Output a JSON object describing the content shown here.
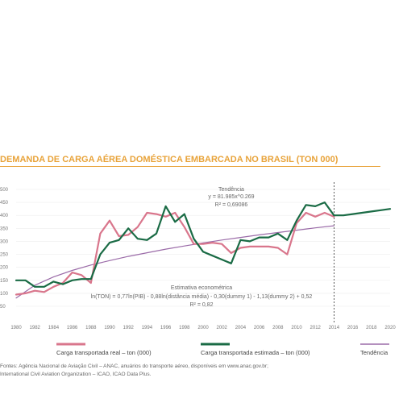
{
  "title": "DEMANDA DE CARGA AÉREA DOMÉSTICA EMBARCADA NO BRASIL (TON 000)",
  "annotations": {
    "trend_lines": [
      "Tendência",
      "y = 81.985x^0.269",
      "R² = 0,69086"
    ],
    "econ_lines": [
      "Estimativa econométrica",
      "ln(TON) = 0,77ln(PIB) - 0,88ln(distância média) - 0,30(dummy 1) - 1,13(dummy 2) + 0,52",
      "R² = 0,82"
    ]
  },
  "legend": {
    "real": "Carga transportada real – ton (000)",
    "estimated": "Carga transportada estimada – ton (000)",
    "trend": "Tendência"
  },
  "colors": {
    "real": "#d9768c",
    "estimated": "#1a6b45",
    "trend": "#9b6ba8",
    "title": "#e8a33a"
  },
  "source_lines": [
    "Fontes: Agência Nacional de Aviação Civil – ANAC, anuários do transporte aéreo, disponíveis em www.anac.gov.br;",
    "International Civil Aviation Organization – ICAO, ICAO Data Plus."
  ],
  "chart_data": {
    "type": "line",
    "title": "DEMANDA DE CARGA AÉREA DOMÉSTICA EMBARCADA NO BRASIL (TON 000)",
    "xlabel": "",
    "ylabel": "",
    "x_ticks": [
      1980,
      1982,
      1984,
      1986,
      1988,
      1990,
      1992,
      1994,
      1996,
      1998,
      2000,
      2002,
      2004,
      2006,
      2008,
      2010,
      2012,
      2014,
      2016,
      2018,
      2020
    ],
    "y_ticks": [
      50,
      100,
      150,
      200,
      250,
      300,
      350,
      400,
      450,
      500
    ],
    "y_tick_labels": [
      "50",
      "100",
      "150",
      "200",
      "250",
      "300",
      "350",
      "400",
      "450",
      "500"
    ],
    "xlim": [
      1980,
      2020
    ],
    "ylim": [
      50,
      500
    ],
    "forecast_divider_x": 2014,
    "series": [
      {
        "name": "Carga transportada real – ton (000)",
        "x": [
          1980,
          1981,
          1982,
          1983,
          1984,
          1985,
          1986,
          1987,
          1988,
          1989,
          1990,
          1991,
          1992,
          1993,
          1994,
          1995,
          1996,
          1997,
          1998,
          1999,
          2000,
          2001,
          2002,
          2003,
          2004,
          2005,
          2006,
          2007,
          2008,
          2009,
          2010,
          2011,
          2012,
          2013,
          2014
        ],
        "y": [
          95,
          100,
          110,
          105,
          125,
          140,
          180,
          170,
          140,
          330,
          380,
          320,
          325,
          355,
          410,
          405,
          395,
          410,
          355,
          290,
          290,
          295,
          290,
          255,
          275,
          280,
          280,
          280,
          275,
          250,
          370,
          410,
          395,
          410,
          395
        ]
      },
      {
        "name": "Carga transportada estimada – ton (000)",
        "x": [
          1980,
          1981,
          1982,
          1983,
          1984,
          1985,
          1986,
          1987,
          1988,
          1989,
          1990,
          1991,
          1992,
          1993,
          1994,
          1995,
          1996,
          1997,
          1998,
          1999,
          2000,
          2001,
          2002,
          2003,
          2004,
          2005,
          2006,
          2007,
          2008,
          2009,
          2010,
          2011,
          2012,
          2013,
          2014,
          2015,
          2016,
          2017,
          2018,
          2019,
          2020
        ],
        "y": [
          150,
          150,
          125,
          125,
          145,
          135,
          150,
          155,
          155,
          250,
          295,
          305,
          350,
          310,
          305,
          330,
          435,
          375,
          405,
          310,
          260,
          245,
          230,
          215,
          305,
          300,
          315,
          315,
          330,
          305,
          380,
          440,
          435,
          450,
          400,
          400,
          405,
          410,
          415,
          420,
          425
        ]
      },
      {
        "name": "Tendência",
        "x": [
          1980,
          1982,
          1984,
          1986,
          1988,
          1990,
          1992,
          1994,
          1996,
          1998,
          2000,
          2002,
          2004,
          2006,
          2008,
          2010,
          2012,
          2014
        ],
        "y": [
          82,
          131,
          163,
          188,
          209,
          226,
          242,
          256,
          270,
          282,
          294,
          305,
          315,
          325,
          334,
          343,
          352,
          360
        ]
      }
    ]
  }
}
